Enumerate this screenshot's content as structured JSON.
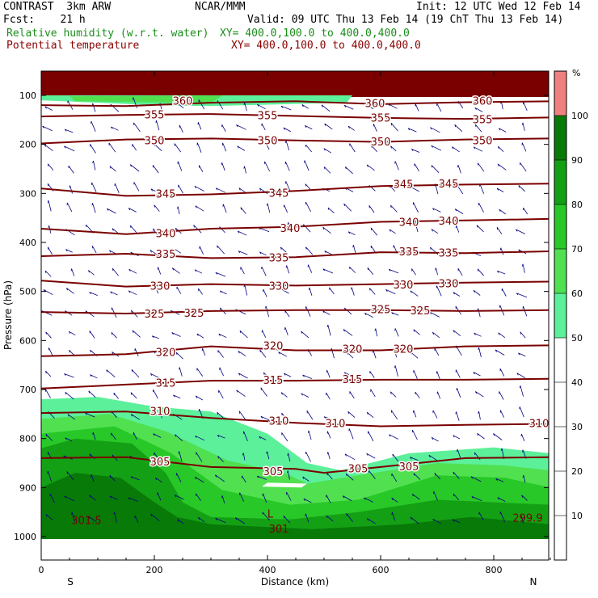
{
  "header": {
    "model": "CONTRAST  3km ARW",
    "center": "NCAR/MMM",
    "init": "Init: 12 UTC Wed 12 Feb 14",
    "fcst": "Fcst:    21 h",
    "valid": "Valid: 09 UTC Thu 13 Feb 14 (19 ChT Thu 13 Feb 14)",
    "field1_name": "Relative humidity (w.r.t. water)",
    "field1_xy": "XY= 400.0,100.0 to 400.0,400.0",
    "field2_name": "Potential temperature",
    "field2_xy": "XY= 400.0,100.0 to 400.0,400.0"
  },
  "colors": {
    "rh_bands": [
      "#ffffff",
      "#5cf09a",
      "#50e050",
      "#28c828",
      "#14a014",
      "#087a08",
      "#f08080"
    ],
    "theta_line": "#7a0000",
    "wind_arrow": "#000080"
  },
  "chart_data": {
    "type": "cross-section",
    "xlabel": "Distance (km)",
    "ylabel": "Pressure (hPa)",
    "xlim": [
      0,
      900
    ],
    "ylim": [
      1000,
      50
    ],
    "x_ticks": [
      0,
      200,
      400,
      600,
      800
    ],
    "y_ticks": [
      100,
      200,
      300,
      400,
      500,
      600,
      700,
      800,
      900,
      1000
    ],
    "x_endpoints": [
      "S",
      "N"
    ],
    "colorbar": {
      "unit": "%",
      "ticks": [
        10,
        20,
        30,
        40,
        50,
        60,
        70,
        80,
        90,
        100
      ],
      "levels": [
        {
          "from": 50,
          "to": 60,
          "color": "#5cf09a"
        },
        {
          "from": 60,
          "to": 70,
          "color": "#50e050"
        },
        {
          "from": 70,
          "to": 80,
          "color": "#28c828"
        },
        {
          "from": 80,
          "to": 90,
          "color": "#14a014"
        },
        {
          "from": 90,
          "to": 100,
          "color": "#087a08"
        },
        {
          "from": 100,
          "to": 110,
          "color": "#f08080"
        }
      ]
    },
    "theta_contours": [
      {
        "value": 360,
        "points": [
          [
            0,
            120
          ],
          [
            150,
            122
          ],
          [
            300,
            115
          ],
          [
            450,
            112
          ],
          [
            600,
            118
          ],
          [
            750,
            114
          ],
          [
            900,
            112
          ]
        ],
        "labels": [
          [
            250,
            112
          ],
          [
            590,
            117
          ],
          [
            780,
            112
          ]
        ]
      },
      {
        "value": 355,
        "points": [
          [
            0,
            143
          ],
          [
            150,
            140
          ],
          [
            300,
            138
          ],
          [
            450,
            142
          ],
          [
            600,
            146
          ],
          [
            750,
            148
          ],
          [
            900,
            145
          ]
        ],
        "labels": [
          [
            200,
            140
          ],
          [
            400,
            142
          ],
          [
            600,
            147
          ],
          [
            780,
            150
          ]
        ]
      },
      {
        "value": 350,
        "points": [
          [
            0,
            198
          ],
          [
            150,
            190
          ],
          [
            300,
            188
          ],
          [
            450,
            192
          ],
          [
            600,
            195
          ],
          [
            750,
            190
          ],
          [
            900,
            188
          ]
        ],
        "labels": [
          [
            200,
            193
          ],
          [
            400,
            193
          ],
          [
            600,
            196
          ],
          [
            780,
            193
          ]
        ]
      },
      {
        "value": 345,
        "points": [
          [
            0,
            290
          ],
          [
            150,
            305
          ],
          [
            300,
            302
          ],
          [
            450,
            295
          ],
          [
            600,
            285
          ],
          [
            750,
            282
          ],
          [
            900,
            280
          ]
        ],
        "labels": [
          [
            220,
            302
          ],
          [
            420,
            300
          ],
          [
            640,
            282
          ],
          [
            720,
            281
          ]
        ]
      },
      {
        "value": 340,
        "points": [
          [
            0,
            372
          ],
          [
            150,
            383
          ],
          [
            300,
            372
          ],
          [
            450,
            368
          ],
          [
            600,
            358
          ],
          [
            750,
            355
          ],
          [
            900,
            352
          ]
        ],
        "labels": [
          [
            220,
            383
          ],
          [
            440,
            372
          ],
          [
            650,
            360
          ],
          [
            720,
            357
          ]
        ]
      },
      {
        "value": 335,
        "points": [
          [
            0,
            428
          ],
          [
            150,
            423
          ],
          [
            300,
            432
          ],
          [
            450,
            430
          ],
          [
            600,
            420
          ],
          [
            750,
            422
          ],
          [
            900,
            418
          ]
        ],
        "labels": [
          [
            220,
            425
          ],
          [
            420,
            432
          ],
          [
            650,
            420
          ],
          [
            720,
            422
          ]
        ]
      },
      {
        "value": 330,
        "points": [
          [
            0,
            478
          ],
          [
            150,
            490
          ],
          [
            300,
            485
          ],
          [
            450,
            488
          ],
          [
            600,
            485
          ],
          [
            750,
            482
          ],
          [
            900,
            480
          ]
        ],
        "labels": [
          [
            210,
            490
          ],
          [
            420,
            490
          ],
          [
            640,
            487
          ],
          [
            720,
            485
          ]
        ]
      },
      {
        "value": 325,
        "points": [
          [
            0,
            542
          ],
          [
            150,
            545
          ],
          [
            300,
            540
          ],
          [
            450,
            538
          ],
          [
            600,
            538
          ],
          [
            750,
            540
          ],
          [
            900,
            538
          ]
        ],
        "labels": [
          [
            200,
            547
          ],
          [
            270,
            545
          ],
          [
            600,
            538
          ],
          [
            670,
            540
          ]
        ]
      },
      {
        "value": 320,
        "points": [
          [
            0,
            632
          ],
          [
            150,
            628
          ],
          [
            300,
            612
          ],
          [
            450,
            620
          ],
          [
            600,
            620
          ],
          [
            750,
            612
          ],
          [
            900,
            610
          ]
        ],
        "labels": [
          [
            220,
            625
          ],
          [
            410,
            612
          ],
          [
            550,
            618
          ],
          [
            640,
            618
          ]
        ]
      },
      {
        "value": 315,
        "points": [
          [
            0,
            698
          ],
          [
            150,
            690
          ],
          [
            300,
            682
          ],
          [
            450,
            682
          ],
          [
            600,
            680
          ],
          [
            750,
            680
          ],
          [
            900,
            678
          ]
        ],
        "labels": [
          [
            220,
            688
          ],
          [
            410,
            682
          ],
          [
            550,
            680
          ]
        ]
      },
      {
        "value": 310,
        "points": [
          [
            0,
            748
          ],
          [
            150,
            745
          ],
          [
            300,
            758
          ],
          [
            450,
            768
          ],
          [
            600,
            775
          ],
          [
            750,
            772
          ],
          [
            900,
            770
          ]
        ],
        "labels": [
          [
            210,
            745
          ],
          [
            420,
            765
          ],
          [
            520,
            770
          ],
          [
            880,
            770
          ]
        ]
      },
      {
        "value": 305,
        "points": [
          [
            0,
            840
          ],
          [
            150,
            838
          ],
          [
            300,
            858
          ],
          [
            450,
            862
          ],
          [
            500,
            870
          ],
          [
            600,
            858
          ],
          [
            750,
            840
          ],
          [
            900,
            838
          ]
        ],
        "labels": [
          [
            210,
            848
          ],
          [
            410,
            868
          ],
          [
            560,
            862
          ],
          [
            650,
            858
          ]
        ]
      }
    ],
    "contour_extra_labels": [
      "301.5",
      "301",
      "299.9",
      "L"
    ]
  }
}
